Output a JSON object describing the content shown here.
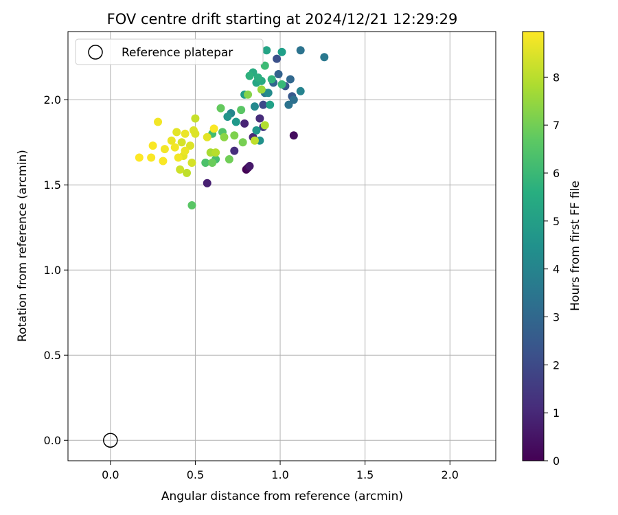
{
  "chart_data": {
    "type": "scatter",
    "title": "FOV centre drift starting at 2024/12/21 12:29:29",
    "xlabel": "Angular distance from reference (arcmin)",
    "ylabel": "Rotation from reference (arcmin)",
    "xlim": [
      -0.25,
      2.27
    ],
    "ylim": [
      -0.12,
      2.4
    ],
    "xticks": [
      "0.0",
      "0.5",
      "1.0",
      "1.5",
      "2.0"
    ],
    "yticks": [
      "0.0",
      "0.5",
      "1.0",
      "1.5",
      "2.0"
    ],
    "grid": true,
    "colormap": "viridis",
    "colorbar": {
      "label": "Hours from first FF file",
      "min": 0,
      "max": 8.95,
      "ticks": [
        "0",
        "1",
        "2",
        "3",
        "4",
        "5",
        "6",
        "7",
        "8"
      ]
    },
    "legend": {
      "position": "top-left",
      "entries": [
        "Reference platepar"
      ]
    },
    "reference_point": {
      "x": 0.0,
      "y": 0.0
    },
    "points": [
      {
        "x": 0.8,
        "y": 1.59,
        "h": 0.0
      },
      {
        "x": 0.81,
        "y": 1.6,
        "h": 0.2
      },
      {
        "x": 1.08,
        "y": 1.79,
        "h": 0.3
      },
      {
        "x": 0.82,
        "y": 1.61,
        "h": 0.6
      },
      {
        "x": 0.57,
        "y": 1.51,
        "h": 0.8
      },
      {
        "x": 0.79,
        "y": 1.86,
        "h": 0.9
      },
      {
        "x": 0.84,
        "y": 1.78,
        "h": 1.0
      },
      {
        "x": 0.73,
        "y": 1.7,
        "h": 1.2
      },
      {
        "x": 0.88,
        "y": 1.89,
        "h": 1.1
      },
      {
        "x": 0.9,
        "y": 1.84,
        "h": 1.5
      },
      {
        "x": 0.9,
        "y": 1.97,
        "h": 2.0
      },
      {
        "x": 0.98,
        "y": 2.24,
        "h": 2.2
      },
      {
        "x": 1.07,
        "y": 2.02,
        "h": 2.5
      },
      {
        "x": 1.03,
        "y": 2.08,
        "h": 2.4
      },
      {
        "x": 0.99,
        "y": 2.15,
        "h": 2.8
      },
      {
        "x": 0.96,
        "y": 2.1,
        "h": 2.9
      },
      {
        "x": 1.06,
        "y": 2.12,
        "h": 3.0
      },
      {
        "x": 1.05,
        "y": 1.97,
        "h": 3.4
      },
      {
        "x": 1.08,
        "y": 2.0,
        "h": 3.3
      },
      {
        "x": 1.26,
        "y": 2.25,
        "h": 3.6
      },
      {
        "x": 1.12,
        "y": 2.29,
        "h": 3.4
      },
      {
        "x": 0.91,
        "y": 2.04,
        "h": 3.5
      },
      {
        "x": 1.12,
        "y": 2.05,
        "h": 4.0
      },
      {
        "x": 0.85,
        "y": 1.96,
        "h": 4.2
      },
      {
        "x": 0.93,
        "y": 2.04,
        "h": 4.3
      },
      {
        "x": 0.71,
        "y": 1.92,
        "h": 4.1
      },
      {
        "x": 0.69,
        "y": 1.9,
        "h": 4.6
      },
      {
        "x": 0.74,
        "y": 1.87,
        "h": 4.8
      },
      {
        "x": 0.86,
        "y": 1.82,
        "h": 4.7
      },
      {
        "x": 0.88,
        "y": 1.76,
        "h": 4.5
      },
      {
        "x": 0.79,
        "y": 2.03,
        "h": 4.9
      },
      {
        "x": 1.01,
        "y": 2.28,
        "h": 5.0
      },
      {
        "x": 0.92,
        "y": 2.29,
        "h": 5.2
      },
      {
        "x": 0.86,
        "y": 2.1,
        "h": 5.3
      },
      {
        "x": 0.89,
        "y": 2.11,
        "h": 5.4
      },
      {
        "x": 0.94,
        "y": 1.97,
        "h": 5.1
      },
      {
        "x": 0.84,
        "y": 2.16,
        "h": 5.5
      },
      {
        "x": 0.87,
        "y": 2.13,
        "h": 5.6
      },
      {
        "x": 0.82,
        "y": 2.14,
        "h": 5.7
      },
      {
        "x": 0.95,
        "y": 2.12,
        "h": 5.8
      },
      {
        "x": 1.01,
        "y": 2.09,
        "h": 6.0
      },
      {
        "x": 0.91,
        "y": 2.2,
        "h": 6.1
      },
      {
        "x": 0.6,
        "y": 1.8,
        "h": 6.2
      },
      {
        "x": 0.62,
        "y": 1.65,
        "h": 6.3
      },
      {
        "x": 0.56,
        "y": 1.63,
        "h": 6.4
      },
      {
        "x": 0.66,
        "y": 1.81,
        "h": 6.5
      },
      {
        "x": 0.77,
        "y": 1.94,
        "h": 6.6
      },
      {
        "x": 0.48,
        "y": 1.38,
        "h": 6.6
      },
      {
        "x": 0.65,
        "y": 1.95,
        "h": 6.8
      },
      {
        "x": 0.6,
        "y": 1.63,
        "h": 6.9
      },
      {
        "x": 0.7,
        "y": 1.65,
        "h": 7.0
      },
      {
        "x": 0.78,
        "y": 1.75,
        "h": 7.1
      },
      {
        "x": 0.73,
        "y": 1.79,
        "h": 7.2
      },
      {
        "x": 0.81,
        "y": 2.03,
        "h": 7.3
      },
      {
        "x": 0.67,
        "y": 1.78,
        "h": 7.4
      },
      {
        "x": 0.89,
        "y": 2.06,
        "h": 7.6
      },
      {
        "x": 0.59,
        "y": 1.69,
        "h": 7.8
      },
      {
        "x": 0.91,
        "y": 1.85,
        "h": 7.9
      },
      {
        "x": 0.62,
        "y": 1.69,
        "h": 8.0
      },
      {
        "x": 0.85,
        "y": 1.76,
        "h": 8.1
      },
      {
        "x": 0.5,
        "y": 1.89,
        "h": 8.2
      },
      {
        "x": 0.45,
        "y": 1.57,
        "h": 8.1
      },
      {
        "x": 0.41,
        "y": 1.59,
        "h": 8.3
      },
      {
        "x": 0.48,
        "y": 1.63,
        "h": 8.4
      },
      {
        "x": 0.47,
        "y": 1.73,
        "h": 8.5
      },
      {
        "x": 0.5,
        "y": 1.8,
        "h": 8.5
      },
      {
        "x": 0.39,
        "y": 1.81,
        "h": 8.6
      },
      {
        "x": 0.36,
        "y": 1.76,
        "h": 8.7
      },
      {
        "x": 0.44,
        "y": 1.8,
        "h": 8.7
      },
      {
        "x": 0.43,
        "y": 1.67,
        "h": 8.6
      },
      {
        "x": 0.32,
        "y": 1.71,
        "h": 8.8
      },
      {
        "x": 0.28,
        "y": 1.87,
        "h": 8.8
      },
      {
        "x": 0.25,
        "y": 1.73,
        "h": 8.9
      },
      {
        "x": 0.24,
        "y": 1.66,
        "h": 8.9
      },
      {
        "x": 0.17,
        "y": 1.66,
        "h": 8.95
      },
      {
        "x": 0.31,
        "y": 1.64,
        "h": 8.9
      },
      {
        "x": 0.4,
        "y": 1.66,
        "h": 8.8
      },
      {
        "x": 0.44,
        "y": 1.7,
        "h": 8.7
      },
      {
        "x": 0.38,
        "y": 1.72,
        "h": 8.8
      },
      {
        "x": 0.57,
        "y": 1.78,
        "h": 8.6
      },
      {
        "x": 0.49,
        "y": 1.82,
        "h": 8.5
      },
      {
        "x": 0.61,
        "y": 1.83,
        "h": 8.9
      },
      {
        "x": 0.42,
        "y": 1.75,
        "h": 8.4
      }
    ]
  }
}
